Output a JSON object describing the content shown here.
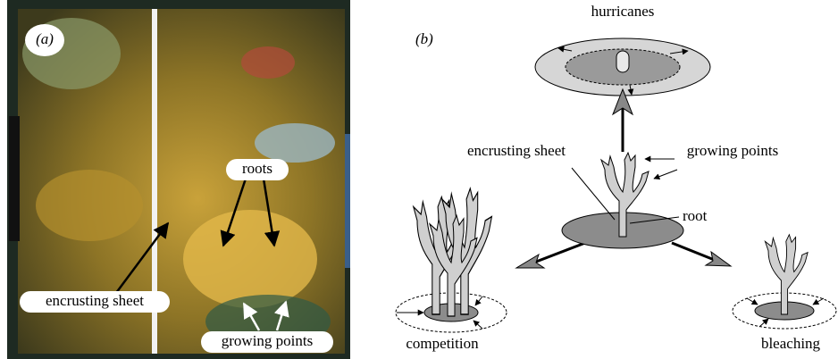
{
  "panel_a": {
    "label": "(a)",
    "roots": "roots",
    "encrusting_sheet": "encrusting sheet",
    "growing_points": "growing points"
  },
  "panel_b": {
    "label": "(b)",
    "hurricanes": "hurricanes",
    "encrusting_sheet": "encrusting sheet",
    "growing_points": "growing points",
    "root": "root",
    "competition": "competition",
    "bleaching": "bleaching"
  }
}
